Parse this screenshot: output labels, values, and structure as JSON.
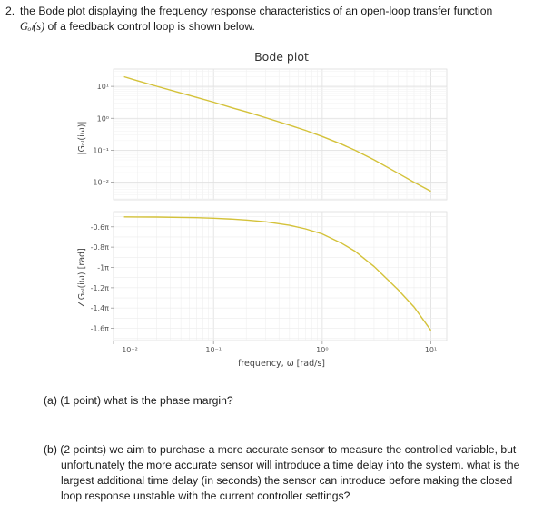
{
  "question": {
    "number": "2.",
    "line1": "the Bode plot displaying the frequency response characteristics of an open-loop transfer function",
    "math": "Gₒₗ(s)",
    "line2_tail": " of a feedback control loop is shown below."
  },
  "parts": {
    "a": {
      "label": "(a)",
      "points": "(1 point)",
      "text": "what is the phase margin?"
    },
    "b": {
      "label": "(b)",
      "points": "(2 points)",
      "text": "we aim to purchase a more accurate sensor to measure the controlled variable, but unfortunately the more accurate sensor will introduce a time delay into the system. what is the largest additional time delay (in seconds) the sensor can introduce before making the closed loop response unstable with the current controller settings?"
    }
  },
  "chart_data": {
    "type": "line",
    "title": "Bode plot",
    "xlabel": "frequency, ω [rad/s]",
    "x_scale": "log",
    "xlim": [
      0.012,
      14
    ],
    "x_ticks": [
      {
        "value": 0.01,
        "label": "10⁻²"
      },
      {
        "value": 0.1,
        "label": "10⁻¹"
      },
      {
        "value": 1,
        "label": "10⁰"
      },
      {
        "value": 10,
        "label": "10¹"
      }
    ],
    "line_color": "#d4c23a",
    "grid": true,
    "magnitude": {
      "ylabel": "|Gₒₗ(iω)|",
      "y_scale": "log",
      "ylim": [
        0.0028,
        35
      ],
      "y_ticks": [
        {
          "value": 10,
          "label": "10¹"
        },
        {
          "value": 1,
          "label": "10⁰"
        },
        {
          "value": 0.1,
          "label": "10⁻¹"
        },
        {
          "value": 0.01,
          "label": "10⁻²"
        }
      ],
      "x": [
        0.015,
        0.02,
        0.03,
        0.05,
        0.07,
        0.1,
        0.15,
        0.2,
        0.3,
        0.5,
        0.7,
        1,
        1.5,
        2,
        3,
        5,
        7,
        10
      ],
      "y": [
        20.0,
        15.0,
        10.1,
        6.2,
        4.5,
        3.2,
        2.1,
        1.6,
        1.05,
        0.61,
        0.42,
        0.27,
        0.155,
        0.1,
        0.05,
        0.019,
        0.0099,
        0.0052
      ]
    },
    "phase": {
      "ylabel": "∠Gₒₗ(iω) [rad]",
      "ylim": [
        -1.72,
        -0.45
      ],
      "y_ticks": [
        {
          "value": -0.6,
          "label": "-0.6π"
        },
        {
          "value": -0.8,
          "label": "-0.8π"
        },
        {
          "value": -1.0,
          "label": "-1π"
        },
        {
          "value": -1.2,
          "label": "-1.2π"
        },
        {
          "value": -1.4,
          "label": "-1.4π"
        },
        {
          "value": -1.6,
          "label": "-1.6π"
        }
      ],
      "x": [
        0.015,
        0.02,
        0.03,
        0.05,
        0.07,
        0.1,
        0.15,
        0.2,
        0.3,
        0.5,
        0.7,
        1,
        1.5,
        2,
        3,
        5,
        7,
        10
      ],
      "y": [
        -0.502,
        -0.503,
        -0.504,
        -0.507,
        -0.51,
        -0.515,
        -0.524,
        -0.533,
        -0.55,
        -0.585,
        -0.62,
        -0.67,
        -0.76,
        -0.84,
        -0.99,
        -1.22,
        -1.39,
        -1.62
      ]
    }
  }
}
